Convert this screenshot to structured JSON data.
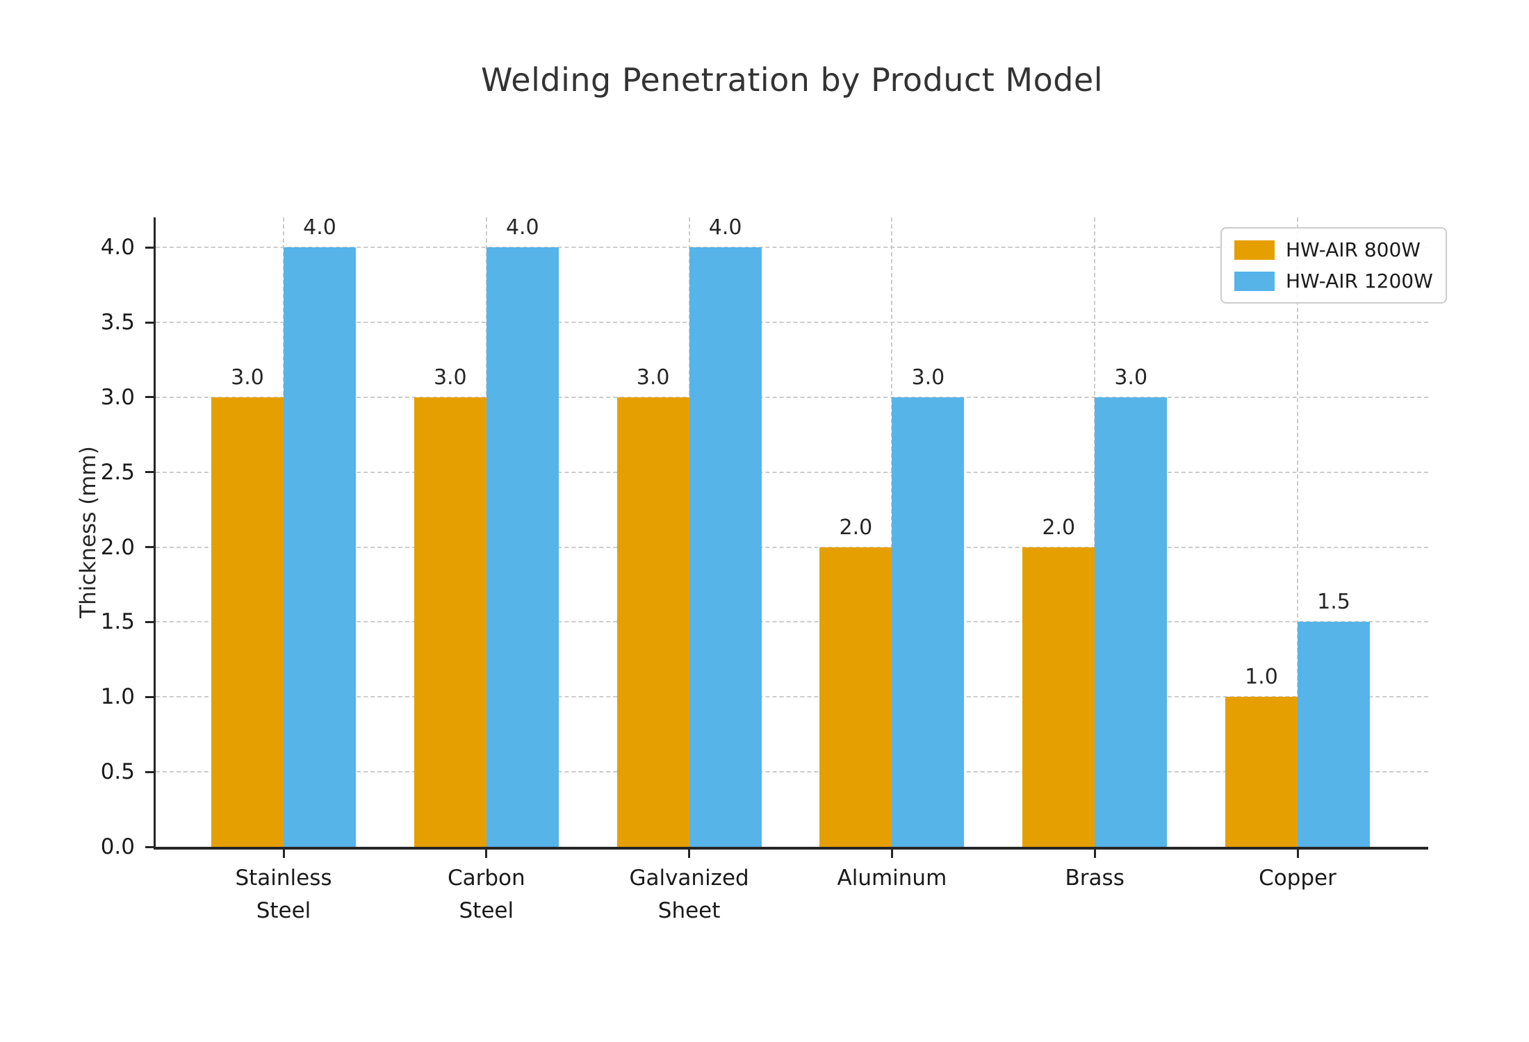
{
  "chart_data": {
    "type": "bar",
    "title": "Welding Penetration by Product Model",
    "xlabel": "",
    "ylabel": "Thickness (mm)",
    "categories": [
      "Stainless\nSteel",
      "Carbon\nSteel",
      "Galvanized\nSheet",
      "Aluminum",
      "Brass",
      "Copper"
    ],
    "series": [
      {
        "name": "HW-AIR 800W",
        "color": "#E69F00",
        "values": [
          3.0,
          3.0,
          3.0,
          2.0,
          2.0,
          1.0
        ]
      },
      {
        "name": "HW-AIR 1200W",
        "color": "#56B4E9",
        "values": [
          4.0,
          4.0,
          4.0,
          3.0,
          3.0,
          1.5
        ]
      }
    ],
    "value_labels": [
      [
        "3.0",
        "3.0",
        "3.0",
        "2.0",
        "2.0",
        "1.0"
      ],
      [
        "4.0",
        "4.0",
        "4.0",
        "3.0",
        "3.0",
        "1.5"
      ]
    ],
    "yticks": [
      "0.0",
      "0.5",
      "1.0",
      "1.5",
      "2.0",
      "2.5",
      "3.0",
      "3.5",
      "4.0"
    ],
    "ylim": [
      0,
      4.2
    ],
    "grid": "both-dashed",
    "legend_position": "upper right",
    "colors": {
      "axis": "#262626",
      "grid": "#cccccc",
      "text": "#1a1a1a",
      "title": "#333333",
      "background": "#ffffff"
    }
  }
}
